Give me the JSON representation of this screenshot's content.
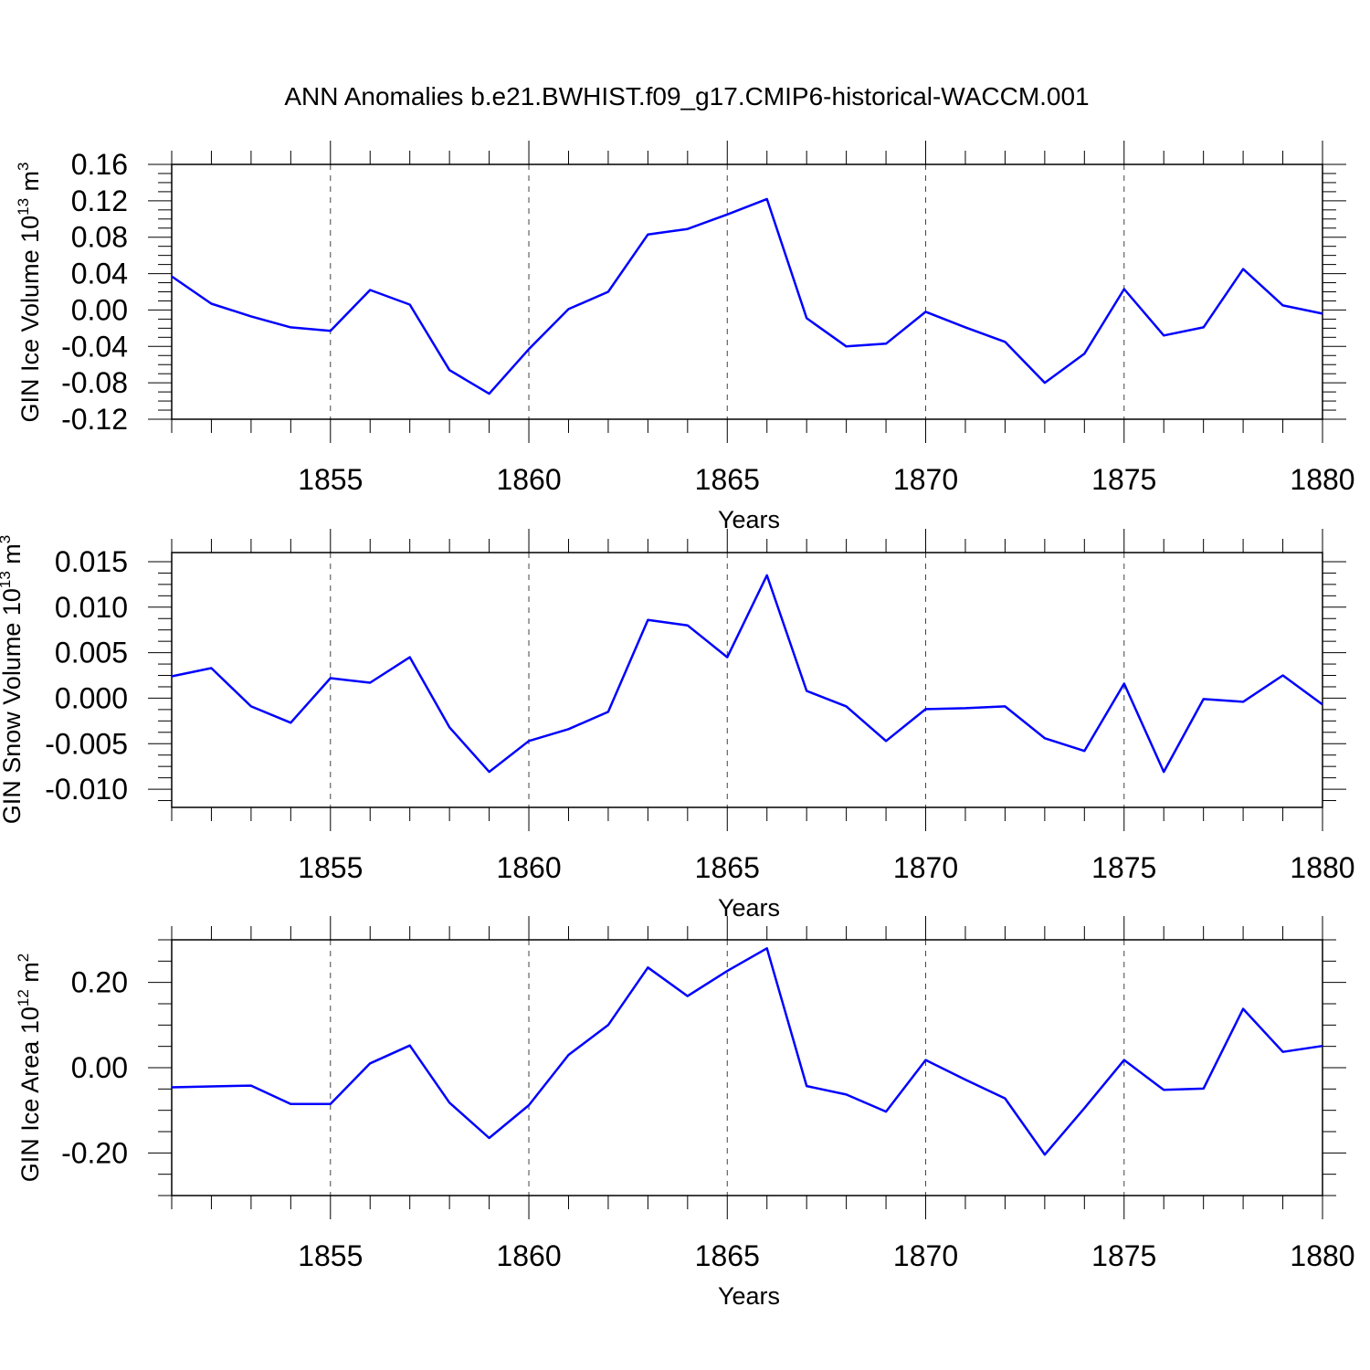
{
  "title": "ANN Anomalies b.e21.BWHIST.f09_g17.CMIP6-historical-WACCM.001",
  "colors": {
    "line": "#0000ff",
    "axis": "#000000",
    "grid": "#444444",
    "background": "#ffffff"
  },
  "chart_data": [
    {
      "type": "line",
      "ylabel": {
        "main": "GIN Ice Volume 10",
        "sup": "13",
        "unit": " m",
        "unit_sup": "3"
      },
      "xlabel": "Years",
      "xlim": [
        1851,
        1880
      ],
      "ylim": [
        -0.12,
        0.16
      ],
      "yticks": [
        -0.12,
        -0.08,
        -0.04,
        0.0,
        0.04,
        0.08,
        0.12,
        0.16
      ],
      "ytick_labels": [
        "-0.12",
        "-0.08",
        "-0.04",
        "0.00",
        "0.04",
        "0.08",
        "0.12",
        "0.16"
      ],
      "xticks": [
        1855,
        1860,
        1865,
        1870,
        1875,
        1880
      ],
      "xtick_labels": [
        "1855",
        "1860",
        "1865",
        "1870",
        "1875",
        "1880"
      ],
      "grid": "vertical-dashed",
      "series": [
        {
          "name": "GIN Ice Volume",
          "x": [
            1851,
            1852,
            1853,
            1854,
            1855,
            1856,
            1857,
            1858,
            1859,
            1860,
            1861,
            1862,
            1863,
            1864,
            1865,
            1866,
            1867,
            1868,
            1869,
            1870,
            1871,
            1872,
            1873,
            1874,
            1875,
            1876,
            1877,
            1878,
            1879,
            1880
          ],
          "values": [
            0.037,
            0.007,
            -0.007,
            -0.019,
            -0.023,
            0.022,
            0.006,
            -0.066,
            -0.092,
            -0.043,
            0.001,
            0.02,
            0.083,
            0.089,
            0.105,
            0.122,
            -0.009,
            -0.04,
            -0.037,
            -0.002,
            -0.019,
            -0.035,
            -0.08,
            -0.048,
            0.023,
            -0.028,
            -0.019,
            0.045,
            0.005,
            -0.004
          ]
        }
      ]
    },
    {
      "type": "line",
      "ylabel": {
        "main": "GIN Snow Volume 10",
        "sup": "13",
        "unit": " m",
        "unit_sup": "3"
      },
      "xlabel": "Years",
      "xlim": [
        1851,
        1880
      ],
      "ylim": [
        -0.012,
        0.016
      ],
      "yticks": [
        -0.01,
        -0.005,
        0.0,
        0.005,
        0.01,
        0.015
      ],
      "ytick_labels": [
        "-0.010",
        "-0.005",
        "0.000",
        "0.005",
        "0.010",
        "0.015"
      ],
      "xticks": [
        1855,
        1860,
        1865,
        1870,
        1875,
        1880
      ],
      "xtick_labels": [
        "1855",
        "1860",
        "1865",
        "1870",
        "1875",
        "1880"
      ],
      "grid": "vertical-dashed",
      "series": [
        {
          "name": "GIN Snow Volume",
          "x": [
            1851,
            1852,
            1853,
            1854,
            1855,
            1856,
            1857,
            1858,
            1859,
            1860,
            1861,
            1862,
            1863,
            1864,
            1865,
            1866,
            1867,
            1868,
            1869,
            1870,
            1871,
            1872,
            1873,
            1874,
            1875,
            1876,
            1877,
            1878,
            1879,
            1880
          ],
          "values": [
            0.0024,
            0.0033,
            -0.0009,
            -0.0027,
            0.0022,
            0.0017,
            0.0045,
            -0.0032,
            -0.0081,
            -0.0047,
            -0.0034,
            -0.0015,
            0.0086,
            0.008,
            0.0045,
            0.0135,
            0.0008,
            -0.0009,
            -0.0047,
            -0.0012,
            -0.0011,
            -0.0009,
            -0.0044,
            -0.0058,
            0.0016,
            -0.0081,
            -0.0001,
            -0.0004,
            0.0025,
            -0.0007
          ]
        }
      ]
    },
    {
      "type": "line",
      "ylabel": {
        "main": "GIN Ice Area 10",
        "sup": "12",
        "unit": " m",
        "unit_sup": "2"
      },
      "xlabel": "Years",
      "xlim": [
        1851,
        1880
      ],
      "ylim": [
        -0.3,
        0.3
      ],
      "yticks": [
        -0.2,
        0.0,
        0.2
      ],
      "ytick_labels": [
        "-0.20",
        "0.00",
        "0.20"
      ],
      "xticks": [
        1855,
        1860,
        1865,
        1870,
        1875,
        1880
      ],
      "xtick_labels": [
        "1855",
        "1860",
        "1865",
        "1870",
        "1875",
        "1880"
      ],
      "grid": "vertical-dashed",
      "series": [
        {
          "name": "GIN Ice Area",
          "x": [
            1851,
            1852,
            1853,
            1854,
            1855,
            1856,
            1857,
            1858,
            1859,
            1860,
            1861,
            1862,
            1863,
            1864,
            1865,
            1866,
            1867,
            1868,
            1869,
            1870,
            1871,
            1872,
            1873,
            1874,
            1875,
            1876,
            1877,
            1878,
            1879,
            1880
          ],
          "values": [
            -0.046,
            -0.044,
            -0.042,
            -0.085,
            -0.085,
            0.01,
            0.052,
            -0.082,
            -0.165,
            -0.088,
            0.03,
            0.1,
            0.235,
            0.168,
            0.227,
            0.28,
            -0.043,
            -0.063,
            -0.103,
            0.018,
            -0.028,
            -0.072,
            -0.204,
            -0.095,
            0.018,
            -0.052,
            -0.049,
            0.138,
            0.037,
            0.051
          ]
        }
      ]
    }
  ]
}
